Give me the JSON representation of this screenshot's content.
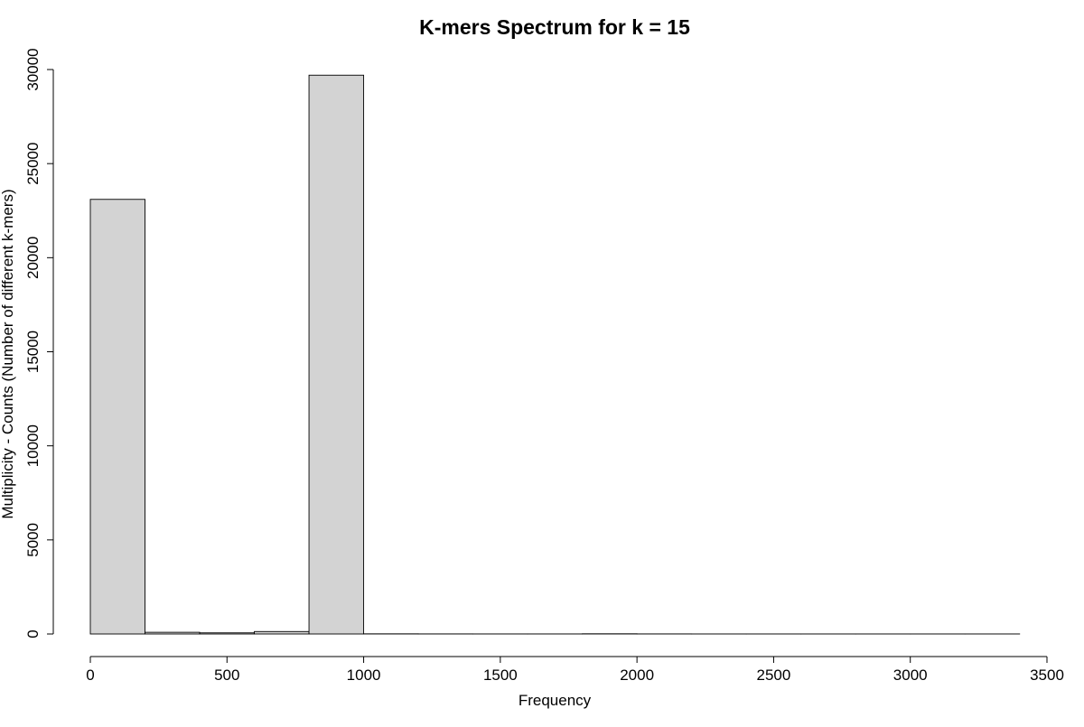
{
  "chart_data": {
    "type": "bar",
    "title": "K-mers Spectrum for k =  15",
    "xlabel": "Frequency",
    "ylabel": "Multiplicity - Counts (Number of different k-mers)",
    "xlim": [
      0,
      3500
    ],
    "ylim": [
      0,
      30000
    ],
    "grid": false,
    "x_ticks": [
      0,
      500,
      1000,
      1500,
      2000,
      2500,
      3000,
      3500
    ],
    "y_ticks": [
      0,
      5000,
      10000,
      15000,
      20000,
      25000,
      30000
    ],
    "bin_edges": [
      0,
      200,
      400,
      600,
      800,
      1000,
      1200,
      1400,
      1600,
      1800,
      2000,
      2200,
      2400,
      2600,
      2800,
      3000,
      3200,
      3400
    ],
    "values": [
      23100,
      90,
      60,
      130,
      29700,
      8,
      4,
      3,
      3,
      10,
      4,
      2,
      2,
      2,
      2,
      2,
      2
    ],
    "colors": {
      "bar_fill": "#d3d3d3",
      "bar_stroke": "#000000"
    }
  }
}
